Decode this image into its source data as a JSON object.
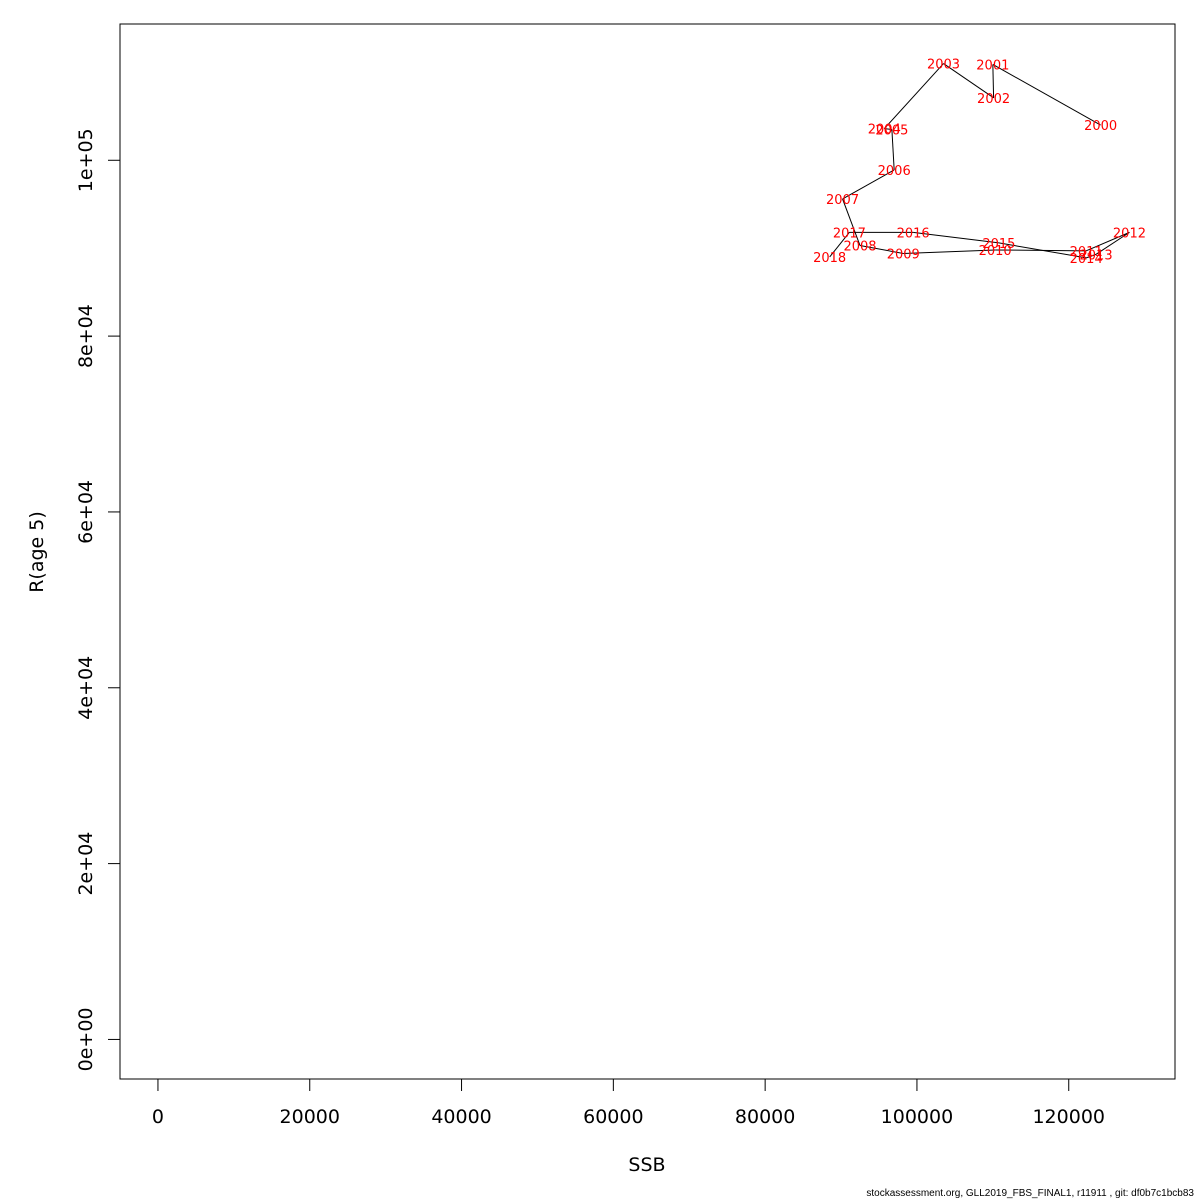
{
  "chart_data": {
    "type": "line",
    "xlabel": "SSB",
    "ylabel": "R(age 5)",
    "xlim": [
      -5000,
      134000
    ],
    "ylim": [
      -4500,
      115500
    ],
    "x_ticks": [
      0,
      20000,
      40000,
      60000,
      80000,
      100000,
      120000
    ],
    "x_tick_labels": [
      "0",
      "20000",
      "40000",
      "60000",
      "80000",
      "100000",
      "120000"
    ],
    "y_ticks": [
      0,
      20000,
      40000,
      60000,
      80000,
      100000
    ],
    "y_tick_labels": [
      "0e+00",
      "2e+04",
      "4e+04",
      "6e+04",
      "8e+04",
      "1e+05"
    ],
    "grid": false,
    "line_color": "#000000",
    "label_color": "#ff0000",
    "points": [
      {
        "year": "2000",
        "ssb": 124200,
        "r": 104000
      },
      {
        "year": "2001",
        "ssb": 110000,
        "r": 110900
      },
      {
        "year": "2002",
        "ssb": 110100,
        "r": 107100
      },
      {
        "year": "2003",
        "ssb": 103500,
        "r": 111000
      },
      {
        "year": "2004",
        "ssb": 95700,
        "r": 103600
      },
      {
        "year": "2005",
        "ssb": 96700,
        "r": 103500
      },
      {
        "year": "2006",
        "ssb": 97000,
        "r": 98900
      },
      {
        "year": "2007",
        "ssb": 90200,
        "r": 95600
      },
      {
        "year": "2008",
        "ssb": 92500,
        "r": 90300
      },
      {
        "year": "2009",
        "ssb": 98200,
        "r": 89400
      },
      {
        "year": "2010",
        "ssb": 110300,
        "r": 89800
      },
      {
        "year": "2011",
        "ssb": 122300,
        "r": 89700
      },
      {
        "year": "2012",
        "ssb": 128000,
        "r": 91800
      },
      {
        "year": "2013",
        "ssb": 123600,
        "r": 89300
      },
      {
        "year": "2014",
        "ssb": 122300,
        "r": 88900
      },
      {
        "year": "2015",
        "ssb": 110800,
        "r": 90600
      },
      {
        "year": "2016",
        "ssb": 99500,
        "r": 91800
      },
      {
        "year": "2017",
        "ssb": 91100,
        "r": 91800
      },
      {
        "year": "2018",
        "ssb": 88500,
        "r": 89000
      }
    ]
  },
  "footer_text": "stockassessment.org, GLL2019_FBS_FINAL1, r11911 , git: df0b7c1bcb83"
}
